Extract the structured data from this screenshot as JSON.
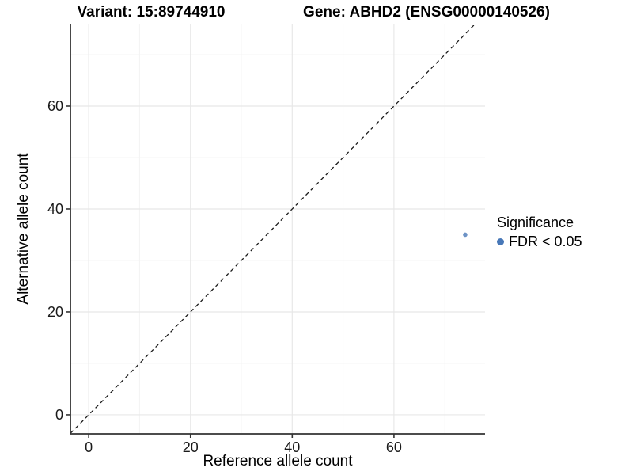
{
  "titles": {
    "variant": "Variant: 15:89744910",
    "gene": "Gene: ABHD2 (ENSG00000140526)"
  },
  "axes": {
    "x_label": "Reference allele count",
    "y_label": "Alternative allele count"
  },
  "legend": {
    "title": "Significance",
    "entries": [
      {
        "label": "FDR < 0.05",
        "color": "#4878b8"
      }
    ]
  },
  "colors": {
    "background": "#ffffff",
    "point_blue": "#4878b8",
    "grid_major": "#e8e8e8",
    "grid_minor": "#f4f4f4",
    "axis_line": "#333333",
    "tick_text": "#1a1a1a",
    "dashed_line": "#1a1a1a"
  },
  "chart_data": {
    "type": "scatter",
    "title": "Variant: 15:89744910 | Gene: ABHD2 (ENSG00000140526)",
    "xlabel": "Reference allele count",
    "ylabel": "Alternative allele count",
    "xlim": [
      -3.6,
      77.9
    ],
    "ylim": [
      -3.7,
      76.0
    ],
    "x_ticks": [
      0,
      20,
      40,
      60
    ],
    "y_ticks": [
      0,
      20,
      40,
      60
    ],
    "x_minor_ticks": [
      10,
      30,
      50,
      70
    ],
    "y_minor_ticks": [
      10,
      30,
      50,
      70
    ],
    "grid": true,
    "legend_position": "right",
    "legend_title": "Significance",
    "series": [
      {
        "name": "FDR < 0.05",
        "color": "#4878b8",
        "points": [
          {
            "x": 74,
            "y": 35
          }
        ]
      }
    ],
    "reference_line": {
      "type": "identity-diagonal",
      "equation": "y = x",
      "style": "dashed",
      "color": "#1a1a1a"
    }
  }
}
